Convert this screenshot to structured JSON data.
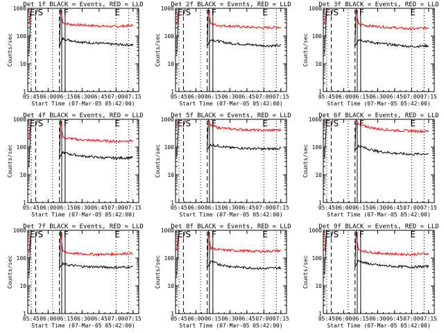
{
  "chart_data": [
    {
      "type": "line",
      "title": "Det 1f BLACK = Events, RED = LLD",
      "xlabel": "Start Time (07-Mar-05 05:42:00)",
      "ylabel": "Counts/sec",
      "x_ticks": [
        "05:45",
        "06:00",
        "06:15",
        "06:30",
        "06:45",
        "07:00",
        "07:15"
      ],
      "y_ticks": [
        "1",
        "10",
        "100",
        "1000"
      ],
      "y_scale": "log",
      "ylim": [
        1,
        1000
      ],
      "xlim": [
        "05:42",
        "07:20"
      ],
      "markers": [
        {
          "label": "E/S",
          "time": "05:45"
        },
        {
          "label": "F",
          "time": "06:15"
        },
        {
          "label": "E",
          "time": "07:00"
        }
      ],
      "vlines": {
        "dashed": [
          "05:49",
          "06:10"
        ],
        "dotted": [
          "05:45",
          "06:04",
          "07:00",
          "07:11"
        ],
        "solid": [
          "06:12",
          "06:15"
        ]
      },
      "series": [
        {
          "color": "#ff0000",
          "x": [
            "06:13",
            "06:20",
            "06:30",
            "06:45",
            "07:00",
            "07:15"
          ],
          "values": [
            300,
            260,
            250,
            230,
            220,
            240
          ]
        },
        {
          "color": "#000000",
          "x": [
            "06:10",
            "06:13",
            "06:20",
            "06:30",
            "06:45",
            "07:00",
            "07:15"
          ],
          "values": [
            45,
            80,
            70,
            60,
            55,
            50,
            48
          ]
        }
      ]
    },
    {
      "type": "line",
      "title": "Det 2f BLACK = Events, RED = LLD",
      "xlabel": "Start Time (07-Mar-05 05:42:00)",
      "ylabel": "Counts/sec",
      "x_ticks": [
        "05:45",
        "06:00",
        "06:15",
        "06:30",
        "06:45",
        "07:00",
        "07:15"
      ],
      "y_ticks": [
        "1",
        "10",
        "100",
        "1000"
      ],
      "y_scale": "log",
      "ylim": [
        1,
        1000
      ],
      "xlim": [
        "05:42",
        "07:20"
      ],
      "markers": [
        {
          "label": "E/S",
          "time": "05:45"
        },
        {
          "label": "F",
          "time": "06:15"
        },
        {
          "label": "E",
          "time": "07:00"
        }
      ],
      "vlines": {
        "dashed": [
          "05:49",
          "06:10"
        ],
        "dotted": [
          "05:45",
          "06:04",
          "07:00",
          "07:11"
        ],
        "solid": [
          "06:12",
          "06:15"
        ]
      },
      "series": [
        {
          "color": "#ff0000",
          "x": [
            "06:13",
            "06:20",
            "06:30",
            "06:45",
            "07:00",
            "07:15"
          ],
          "values": [
            280,
            240,
            230,
            210,
            200,
            210
          ]
        },
        {
          "color": "#000000",
          "x": [
            "06:10",
            "06:13",
            "06:20",
            "06:30",
            "06:45",
            "07:00",
            "07:15"
          ],
          "values": [
            45,
            75,
            65,
            55,
            50,
            45,
            45
          ]
        }
      ]
    },
    {
      "type": "line",
      "title": "Det 3f BLACK = Events, RED = LLD",
      "xlabel": "Start Time (07-Mar-05 05:42:00)",
      "ylabel": "Counts/sec",
      "x_ticks": [
        "05:45",
        "06:00",
        "06:15",
        "06:30",
        "06:45",
        "07:00",
        "07:15"
      ],
      "y_ticks": [
        "1",
        "10",
        "100",
        "1000"
      ],
      "y_scale": "log",
      "ylim": [
        1,
        1000
      ],
      "xlim": [
        "05:42",
        "07:20"
      ],
      "markers": [
        {
          "label": "E/S",
          "time": "05:45"
        },
        {
          "label": "F",
          "time": "06:15"
        },
        {
          "label": "E",
          "time": "07:00"
        }
      ],
      "vlines": {
        "dashed": [
          "05:49",
          "06:10"
        ],
        "dotted": [
          "05:45",
          "06:04",
          "07:00",
          "07:11"
        ],
        "solid": [
          "06:12",
          "06:15"
        ]
      },
      "series": [
        {
          "color": "#ff0000",
          "x": [
            "06:13",
            "06:20",
            "06:30",
            "06:45",
            "07:00",
            "07:15"
          ],
          "values": [
            280,
            240,
            220,
            200,
            180,
            200
          ]
        },
        {
          "color": "#000000",
          "x": [
            "06:10",
            "06:13",
            "06:20",
            "06:30",
            "06:45",
            "07:00",
            "07:15"
          ],
          "values": [
            45,
            75,
            65,
            55,
            48,
            42,
            45
          ]
        }
      ]
    },
    {
      "type": "line",
      "title": "Det 4f BLACK = Events, RED = LLD",
      "xlabel": "Start Time (07-Mar-05 05:42:00)",
      "ylabel": "Counts/sec",
      "x_ticks": [
        "05:45",
        "06:00",
        "06:15",
        "06:30",
        "06:45",
        "07:00",
        "07:15"
      ],
      "y_ticks": [
        "1",
        "10",
        "100",
        "1000"
      ],
      "y_scale": "log",
      "ylim": [
        1,
        1000
      ],
      "xlim": [
        "05:42",
        "07:20"
      ],
      "markers": [
        {
          "label": "E/S",
          "time": "05:45"
        },
        {
          "label": "F",
          "time": "06:15"
        },
        {
          "label": "E",
          "time": "07:00"
        }
      ],
      "vlines": {
        "dashed": [
          "05:49",
          "06:10"
        ],
        "dotted": [
          "05:45",
          "06:04",
          "07:00",
          "07:11"
        ],
        "solid": [
          "06:12",
          "06:15"
        ]
      },
      "series": [
        {
          "color": "#ff0000",
          "x": [
            "06:13",
            "06:20",
            "06:30",
            "06:45",
            "07:00",
            "07:15"
          ],
          "values": [
            220,
            200,
            180,
            170,
            160,
            170
          ]
        },
        {
          "color": "#000000",
          "x": [
            "06:10",
            "06:13",
            "06:20",
            "06:30",
            "06:45",
            "07:00",
            "07:15"
          ],
          "values": [
            40,
            65,
            55,
            48,
            42,
            40,
            42
          ]
        }
      ]
    },
    {
      "type": "line",
      "title": "Det 5f BLACK = Events, RED = LLD",
      "xlabel": "Start Time (07-Mar-05 05:42:00)",
      "ylabel": "Counts/sec",
      "x_ticks": [
        "05:45",
        "06:00",
        "06:15",
        "06:30",
        "06:45",
        "07:00",
        "07:15"
      ],
      "y_ticks": [
        "1",
        "10",
        "100",
        "1000"
      ],
      "y_scale": "log",
      "ylim": [
        1,
        1000
      ],
      "xlim": [
        "05:42",
        "07:20"
      ],
      "markers": [
        {
          "label": "E/S",
          "time": "05:45"
        },
        {
          "label": "F",
          "time": "06:15"
        },
        {
          "label": "E",
          "time": "07:00"
        }
      ],
      "vlines": {
        "dashed": [
          "05:49",
          "06:10"
        ],
        "dotted": [
          "05:45",
          "06:04",
          "07:00",
          "07:11"
        ],
        "solid": [
          "06:12",
          "06:15"
        ]
      },
      "series": [
        {
          "color": "#ff0000",
          "x": [
            "06:13",
            "06:20",
            "06:30",
            "06:45",
            "07:00",
            "07:15"
          ],
          "values": [
            600,
            500,
            450,
            420,
            400,
            410
          ]
        },
        {
          "color": "#000000",
          "x": [
            "06:10",
            "06:13",
            "06:20",
            "06:30",
            "06:45",
            "07:00",
            "07:15"
          ],
          "values": [
            90,
            120,
            110,
            95,
            90,
            85,
            90
          ]
        }
      ]
    },
    {
      "type": "line",
      "title": "Det 6f BLACK = Events, RED = LLD",
      "xlabel": "Start Time (07-Mar-05 05:42:00)",
      "ylabel": "Counts/sec",
      "x_ticks": [
        "05:45",
        "06:00",
        "06:15",
        "06:30",
        "06:45",
        "07:00",
        "07:15"
      ],
      "y_ticks": [
        "1",
        "10",
        "100",
        "1000"
      ],
      "y_scale": "log",
      "ylim": [
        1,
        1000
      ],
      "xlim": [
        "05:42",
        "07:20"
      ],
      "markers": [
        {
          "label": "E/S",
          "time": "05:45"
        },
        {
          "label": "F",
          "time": "06:15"
        },
        {
          "label": "E",
          "time": "07:00"
        }
      ],
      "vlines": {
        "dashed": [
          "05:49",
          "06:10"
        ],
        "dotted": [
          "05:45",
          "06:04",
          "07:00",
          "07:11"
        ],
        "solid": [
          "06:12",
          "06:15"
        ]
      },
      "series": [
        {
          "color": "#ff0000",
          "x": [
            "06:13",
            "06:20",
            "06:30",
            "06:45",
            "07:00",
            "07:15"
          ],
          "values": [
            650,
            550,
            450,
            400,
            380,
            370
          ]
        },
        {
          "color": "#000000",
          "x": [
            "06:10",
            "06:13",
            "06:20",
            "06:30",
            "06:45",
            "07:00",
            "07:15"
          ],
          "values": [
            80,
            110,
            90,
            70,
            60,
            55,
            58
          ]
        }
      ]
    },
    {
      "type": "line",
      "title": "Det 7f BLACK = Events, RED = LLD",
      "xlabel": "Start Time (07-Mar-05 05:42:00)",
      "ylabel": "Counts/sec",
      "x_ticks": [
        "05:45",
        "06:00",
        "06:15",
        "06:30",
        "06:45",
        "07:00",
        "07:15"
      ],
      "y_ticks": [
        "1",
        "10",
        "100",
        "1000"
      ],
      "y_scale": "log",
      "ylim": [
        1,
        1000
      ],
      "xlim": [
        "05:42",
        "07:20"
      ],
      "markers": [
        {
          "label": "E/S",
          "time": "05:45"
        },
        {
          "label": "F",
          "time": "06:15"
        },
        {
          "label": "E",
          "time": "07:00"
        }
      ],
      "vlines": {
        "dashed": [
          "05:49",
          "06:10"
        ],
        "dotted": [
          "05:45",
          "06:04",
          "07:00",
          "07:11"
        ],
        "solid": [
          "06:12",
          "06:15"
        ]
      },
      "series": [
        {
          "color": "#ff0000",
          "x": [
            "06:13",
            "06:20",
            "06:30",
            "06:45",
            "07:00",
            "07:15"
          ],
          "values": [
            170,
            150,
            140,
            135,
            140,
            150
          ]
        },
        {
          "color": "#000000",
          "x": [
            "06:10",
            "06:13",
            "06:20",
            "06:30",
            "06:45",
            "07:00",
            "07:15"
          ],
          "values": [
            45,
            60,
            55,
            50,
            48,
            46,
            48
          ]
        }
      ]
    },
    {
      "type": "line",
      "title": "Det 8f BLACK = Events, RED = LLD",
      "xlabel": "Start Time (07-Mar-05 05:42:00)",
      "ylabel": "Counts/sec",
      "x_ticks": [
        "05:45",
        "06:00",
        "06:15",
        "06:30",
        "06:45",
        "07:00",
        "07:15"
      ],
      "y_ticks": [
        "1",
        "10",
        "100",
        "1000"
      ],
      "y_scale": "log",
      "ylim": [
        1,
        1000
      ],
      "xlim": [
        "05:42",
        "07:20"
      ],
      "markers": [
        {
          "label": "E/S",
          "time": "05:45"
        },
        {
          "label": "F",
          "time": "06:15"
        },
        {
          "label": "E",
          "time": "07:00"
        }
      ],
      "vlines": {
        "dashed": [
          "05:49",
          "06:10"
        ],
        "dotted": [
          "05:45",
          "06:04",
          "07:00",
          "07:11"
        ],
        "solid": [
          "06:12",
          "06:15"
        ]
      },
      "series": [
        {
          "color": "#ff0000",
          "x": [
            "06:13",
            "06:20",
            "06:30",
            "06:45",
            "07:00",
            "07:15"
          ],
          "values": [
            230,
            200,
            190,
            180,
            175,
            185
          ]
        },
        {
          "color": "#000000",
          "x": [
            "06:10",
            "06:13",
            "06:20",
            "06:30",
            "06:45",
            "07:00",
            "07:15"
          ],
          "values": [
            45,
            75,
            60,
            50,
            45,
            42,
            45
          ]
        }
      ]
    },
    {
      "type": "line",
      "title": "Det 9f BLACK = Events, RED = LLD",
      "xlabel": "Start Time (07-Mar-05 05:42:00)",
      "ylabel": "Counts/sec",
      "x_ticks": [
        "05:45",
        "06:00",
        "06:15",
        "06:30",
        "06:45",
        "07:00",
        "07:15"
      ],
      "y_ticks": [
        "1",
        "10",
        "100",
        "1000"
      ],
      "y_scale": "log",
      "ylim": [
        1,
        1000
      ],
      "xlim": [
        "05:42",
        "07:20"
      ],
      "markers": [
        {
          "label": "E/S",
          "time": "05:45"
        },
        {
          "label": "F",
          "time": "06:15"
        },
        {
          "label": "E",
          "time": "07:00"
        }
      ],
      "vlines": {
        "dashed": [
          "05:49",
          "06:10"
        ],
        "dotted": [
          "05:45",
          "06:04",
          "07:00",
          "07:11"
        ],
        "solid": [
          "06:12",
          "06:15"
        ]
      },
      "series": [
        {
          "color": "#ff0000",
          "x": [
            "06:13",
            "06:20",
            "06:30",
            "06:45",
            "07:00",
            "07:15"
          ],
          "values": [
            200,
            170,
            150,
            140,
            135,
            145
          ]
        },
        {
          "color": "#000000",
          "x": [
            "06:10",
            "06:13",
            "06:20",
            "06:30",
            "06:45",
            "07:00",
            "07:15"
          ],
          "values": [
            50,
            80,
            65,
            55,
            50,
            48,
            50
          ]
        }
      ]
    }
  ]
}
